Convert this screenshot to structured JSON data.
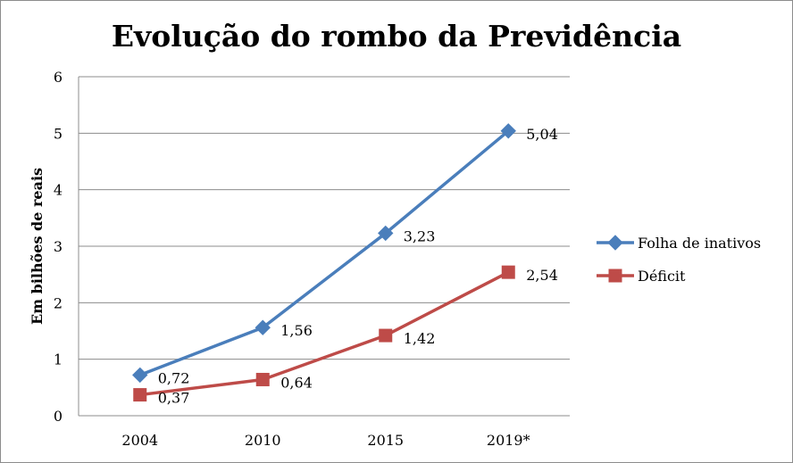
{
  "chart_data": {
    "type": "line",
    "title": "Evolução do rombo da Previdência",
    "xlabel": "",
    "ylabel": "Em bilhões de reais",
    "categories": [
      "2004",
      "2010",
      "2015",
      "2019*"
    ],
    "ylim": [
      0,
      6
    ],
    "yticks": [
      "0",
      "1",
      "2",
      "3",
      "4",
      "5",
      "6"
    ],
    "grid": true,
    "legend_position": "right",
    "series": [
      {
        "name": "Folha de inativos",
        "values": [
          0.72,
          1.56,
          3.23,
          5.04
        ],
        "labels": [
          "0,72",
          "1,56",
          "3,23",
          "5,04"
        ],
        "color": "#4a7ebb",
        "marker": "diamond"
      },
      {
        "name": "Déficit",
        "values": [
          0.37,
          0.64,
          1.42,
          2.54
        ],
        "labels": [
          "0,37",
          "0,64",
          "1,42",
          "2,54"
        ],
        "color": "#be4b48",
        "marker": "square"
      }
    ]
  }
}
